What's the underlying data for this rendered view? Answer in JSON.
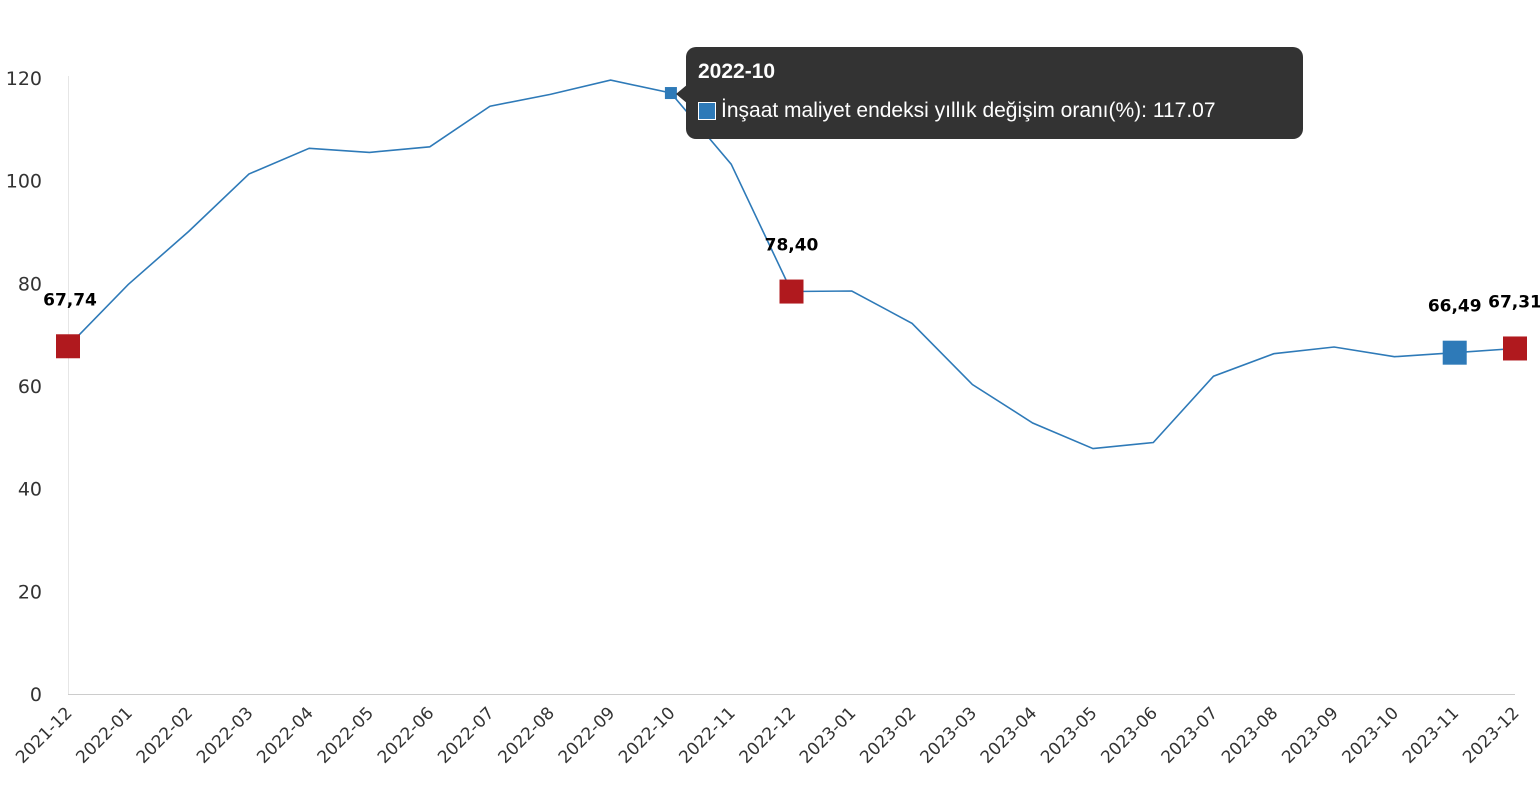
{
  "chart_data": {
    "type": "line",
    "title": "",
    "xlabel": "",
    "ylabel": "",
    "ylim": [
      0,
      120
    ],
    "yticks": [
      0,
      20,
      40,
      60,
      80,
      100,
      120
    ],
    "grid": false,
    "categories": [
      "2021-12",
      "2022-01",
      "2022-02",
      "2022-03",
      "2022-04",
      "2022-05",
      "2022-06",
      "2022-07",
      "2022-08",
      "2022-09",
      "2022-10",
      "2022-11",
      "2022-12",
      "2023-01",
      "2023-02",
      "2023-03",
      "2023-04",
      "2023-05",
      "2023-06",
      "2023-07",
      "2023-08",
      "2023-09",
      "2023-10",
      "2023-11",
      "2023-12"
    ],
    "series": [
      {
        "name": "İnşaat maliyet endeksi yıllık değişim oranı(%)",
        "color": "#2e7ab8",
        "values": [
          67.74,
          79.8,
          90.1,
          101.3,
          106.3,
          105.5,
          106.6,
          114.5,
          116.8,
          119.6,
          117.07,
          103.2,
          78.4,
          78.5,
          72.2,
          60.3,
          52.8,
          47.8,
          49.0,
          61.9,
          66.3,
          67.6,
          65.7,
          66.49,
          67.31
        ]
      }
    ],
    "highlighted_points": [
      {
        "index": 0,
        "label": "67,74",
        "color": "#b0191e"
      },
      {
        "index": 12,
        "label": "78,40",
        "color": "#b0191e"
      },
      {
        "index": 23,
        "label": "66,49",
        "color": "#2e7ab8"
      },
      {
        "index": 24,
        "label": "67,31",
        "color": "#b0191e"
      }
    ],
    "tooltip": {
      "index": 10,
      "title": "2022-10",
      "series_label": "İnşaat maliyet endeksi yıllık değişim oranı(%)",
      "separator": ": ",
      "value": "117.07",
      "color": "#2e7ab8"
    }
  }
}
